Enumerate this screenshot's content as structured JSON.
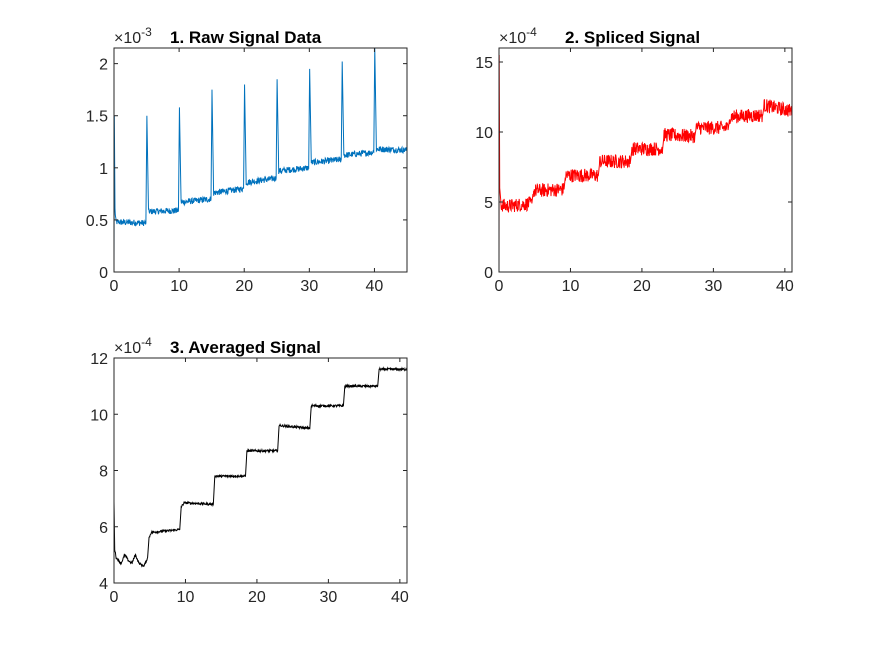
{
  "colors": {
    "background": "#ffffff",
    "axis": "#262626"
  },
  "chart_data": [
    {
      "type": "line",
      "title": "1. Raw Signal Data",
      "exponent_base": "×10",
      "exponent": "-3",
      "xlim": [
        0,
        45
      ],
      "ylim": [
        0,
        2.15
      ],
      "xticks": [
        "0",
        "10",
        "20",
        "30",
        "40"
      ],
      "yticks": [
        "0",
        "0.5",
        "1",
        "1.5",
        "2"
      ],
      "color": "#0072BD",
      "noise": 0.03,
      "x": [
        0,
        0.05,
        0.15,
        0.3,
        4.9,
        5.05,
        5.3,
        9.9,
        10.05,
        10.3,
        14.9,
        15.05,
        15.3,
        19.9,
        20.05,
        20.3,
        24.9,
        25.05,
        25.3,
        29.9,
        30.05,
        30.3,
        34.9,
        35.05,
        35.3,
        39.9,
        40.05,
        40.3,
        45
      ],
      "y": [
        0.1,
        1.5,
        0.6,
        0.48,
        0.47,
        1.5,
        0.58,
        0.59,
        1.58,
        0.67,
        0.7,
        1.75,
        0.76,
        0.8,
        1.8,
        0.86,
        0.9,
        1.85,
        0.97,
        1.0,
        1.95,
        1.05,
        1.08,
        2.02,
        1.12,
        1.15,
        2.15,
        1.18,
        1.17
      ]
    },
    {
      "type": "line",
      "title": "2. Spliced Signal",
      "exponent_base": "×10",
      "exponent": "-4",
      "xlim": [
        0,
        41
      ],
      "ylim": [
        0,
        16
      ],
      "xticks": [
        "0",
        "10",
        "20",
        "30",
        "40"
      ],
      "yticks": [
        "0",
        "5",
        "10",
        "15"
      ],
      "color": "#FF0000",
      "noise": 0.5,
      "x": [
        0,
        0.03,
        0.1,
        0.3,
        1,
        4.6,
        4.8,
        9.1,
        9.3,
        13.9,
        14.1,
        18.4,
        18.6,
        22.9,
        23.1,
        27.4,
        27.6,
        32.1,
        32.3,
        36.9,
        37.1,
        41
      ],
      "y": [
        0,
        15.5,
        6,
        4.8,
        4.7,
        4.9,
        5.8,
        5.9,
        6.9,
        6.9,
        7.9,
        7.9,
        8.8,
        8.8,
        9.8,
        9.7,
        10.3,
        10.3,
        11.1,
        11.2,
        11.9,
        11.5
      ]
    },
    {
      "type": "line",
      "title": "3. Averaged Signal",
      "exponent_base": "×10",
      "exponent": "-4",
      "xlim": [
        0,
        41
      ],
      "ylim": [
        4,
        12
      ],
      "xticks": [
        "0",
        "10",
        "20",
        "30",
        "40"
      ],
      "yticks": [
        "4",
        "6",
        "8",
        "10",
        "12"
      ],
      "color": "#000000",
      "noise": 0.04,
      "x": [
        0,
        0.1,
        0.3,
        1,
        1.5,
        2,
        2.5,
        3,
        3.5,
        4.2,
        4.7,
        4.9,
        5.2,
        9.2,
        9.4,
        9.8,
        13.9,
        14.1,
        18.4,
        18.6,
        22.9,
        23.1,
        27.4,
        27.6,
        32.1,
        32.3,
        36.9,
        37.1,
        41
      ],
      "y": [
        6.9,
        5.2,
        4.9,
        4.7,
        5.0,
        4.8,
        4.7,
        5.0,
        4.7,
        4.6,
        4.9,
        5.6,
        5.8,
        5.9,
        6.7,
        6.85,
        6.8,
        7.8,
        7.8,
        8.7,
        8.7,
        9.6,
        9.5,
        10.3,
        10.3,
        11.0,
        11.0,
        11.6,
        11.6
      ]
    }
  ]
}
